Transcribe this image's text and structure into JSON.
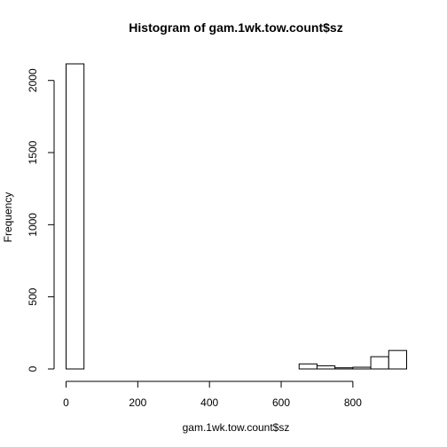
{
  "chart_data": {
    "type": "bar",
    "subtype": "histogram",
    "title": "Histogram of gam.1wk.tow.count$sz",
    "xlabel": "gam.1wk.tow.count$sz",
    "ylabel": "Frequency",
    "bin_width": 50,
    "bins": [
      {
        "start": 0,
        "end": 50,
        "count": 2115
      },
      {
        "start": 50,
        "end": 100,
        "count": 0
      },
      {
        "start": 100,
        "end": 150,
        "count": 0
      },
      {
        "start": 150,
        "end": 200,
        "count": 0
      },
      {
        "start": 200,
        "end": 250,
        "count": 0
      },
      {
        "start": 250,
        "end": 300,
        "count": 0
      },
      {
        "start": 300,
        "end": 350,
        "count": 0
      },
      {
        "start": 350,
        "end": 400,
        "count": 0
      },
      {
        "start": 400,
        "end": 450,
        "count": 0
      },
      {
        "start": 450,
        "end": 500,
        "count": 0
      },
      {
        "start": 500,
        "end": 550,
        "count": 0
      },
      {
        "start": 550,
        "end": 600,
        "count": 0
      },
      {
        "start": 600,
        "end": 650,
        "count": 0
      },
      {
        "start": 650,
        "end": 700,
        "count": 35
      },
      {
        "start": 700,
        "end": 750,
        "count": 22
      },
      {
        "start": 750,
        "end": 800,
        "count": 8
      },
      {
        "start": 800,
        "end": 850,
        "count": 12
      },
      {
        "start": 850,
        "end": 900,
        "count": 85
      },
      {
        "start": 900,
        "end": 950,
        "count": 128
      }
    ],
    "xlim": [
      0,
      950
    ],
    "ylim": [
      0,
      2115
    ],
    "x_ticks": [
      0,
      200,
      400,
      600,
      800
    ],
    "y_ticks": [
      0,
      500,
      1000,
      1500,
      2000
    ],
    "grid": false,
    "legend": "none",
    "bar_fill": "#ffffff",
    "bar_stroke": "#000000"
  }
}
